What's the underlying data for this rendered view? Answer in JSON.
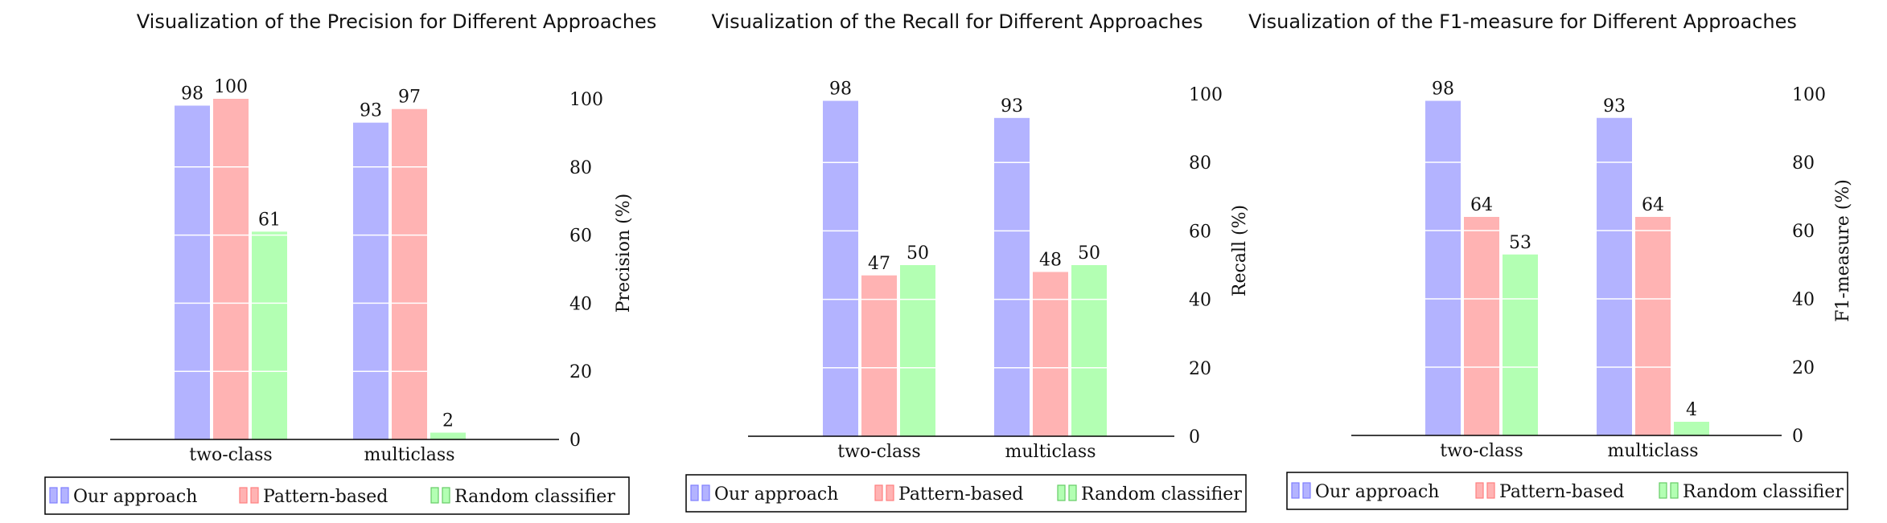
{
  "chart_data": [
    {
      "type": "bar",
      "title": "Visualization of the Precision for Different Approaches",
      "ylabel": "Precision (%)",
      "xlabel": "",
      "categories": [
        "two-class",
        "multiclass"
      ],
      "ylim": [
        0,
        100
      ],
      "yticks": [
        0,
        20,
        40,
        60,
        80,
        100
      ],
      "yaxis_side": "right",
      "grid": "white horizontal lines inside bars",
      "legend": "bottom",
      "series": [
        {
          "name": "Our approach",
          "values": [
            98,
            93
          ],
          "color": "#b3b3ff",
          "edge": "#7f7fff"
        },
        {
          "name": "Pattern-based",
          "values": [
            100,
            97
          ],
          "color": "#ffb3b3",
          "edge": "#ff7f7f"
        },
        {
          "name": "Random classifier",
          "values": [
            61,
            2
          ],
          "color": "#b3ffb3",
          "edge": "#66cc66"
        }
      ]
    },
    {
      "type": "bar",
      "title": "Visualization of the Recall for Different Approaches",
      "ylabel": "Recall (%)",
      "xlabel": "",
      "categories": [
        "two-class",
        "multiclass"
      ],
      "ylim": [
        0,
        100
      ],
      "yticks": [
        0,
        20,
        40,
        60,
        80,
        100
      ],
      "yaxis_side": "right",
      "grid": "white horizontal lines inside bars",
      "legend": "bottom",
      "series": [
        {
          "name": "Our approach",
          "values": [
            98,
            93
          ],
          "color": "#b3b3ff",
          "edge": "#7f7fff"
        },
        {
          "name": "Pattern-based",
          "values": [
            47,
            48
          ],
          "color": "#ffb3b3",
          "edge": "#ff7f7f"
        },
        {
          "name": "Random classifier",
          "values": [
            50,
            50
          ],
          "color": "#b3ffb3",
          "edge": "#66cc66"
        }
      ]
    },
    {
      "type": "bar",
      "title": "Visualization of the F1-measure for Different Approaches",
      "ylabel": "F1-measure (%)",
      "xlabel": "",
      "categories": [
        "two-class",
        "multiclass"
      ],
      "ylim": [
        0,
        100
      ],
      "yticks": [
        0,
        20,
        40,
        60,
        80,
        100
      ],
      "yaxis_side": "right",
      "grid": "white horizontal lines inside bars",
      "legend": "bottom",
      "series": [
        {
          "name": "Our approach",
          "values": [
            98,
            93
          ],
          "color": "#b3b3ff",
          "edge": "#7f7fff"
        },
        {
          "name": "Pattern-based",
          "values": [
            64,
            64
          ],
          "color": "#ffb3b3",
          "edge": "#ff7f7f"
        },
        {
          "name": "Random classifier",
          "values": [
            53,
            4
          ],
          "color": "#b3ffb3",
          "edge": "#66cc66"
        }
      ]
    }
  ]
}
